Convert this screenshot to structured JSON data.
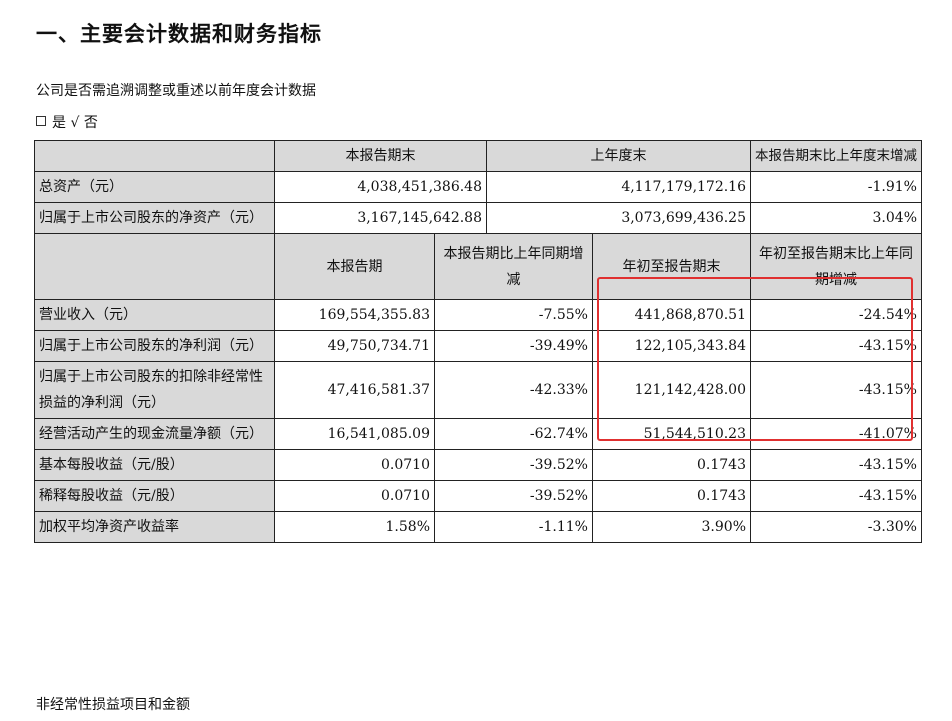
{
  "heading": "一、主要会计数据和财务指标",
  "restate_question": "公司是否需追溯调整或重述以前年度会计数据",
  "restate_answer": {
    "yes": "是",
    "check": "√",
    "no": "否"
  },
  "table1": {
    "headers": [
      "本报告期末",
      "上年度末",
      "本报告期末比上年度末增减"
    ],
    "rows": [
      {
        "label": "总资产（元）",
        "values": [
          "4,038,451,386.48",
          "4,117,179,172.16",
          "-1.91%"
        ]
      },
      {
        "label": "归属于上市公司股东的净资产（元）",
        "values": [
          "3,167,145,642.88",
          "3,073,699,436.25",
          "3.04%"
        ]
      }
    ]
  },
  "table2": {
    "headers": [
      "本报告期",
      "本报告期比上年同期增减",
      "年初至报告期末",
      "年初至报告期末比上年同期增减"
    ],
    "rows": [
      {
        "label": "营业收入（元）",
        "values": [
          "169,554,355.83",
          "-7.55%",
          "441,868,870.51",
          "-24.54%"
        ]
      },
      {
        "label": "归属于上市公司股东的净利润（元）",
        "values": [
          "49,750,734.71",
          "-39.49%",
          "122,105,343.84",
          "-43.15%"
        ]
      },
      {
        "label": "归属于上市公司股东的扣除非经常性损益的净利润（元）",
        "values": [
          "47,416,581.37",
          "-42.33%",
          "121,142,428.00",
          "-43.15%"
        ]
      },
      {
        "label": "经营活动产生的现金流量净额（元）",
        "values": [
          "16,541,085.09",
          "-62.74%",
          "51,544,510.23",
          "-41.07%"
        ]
      },
      {
        "label": "基本每股收益（元/股）",
        "values": [
          "0.0710",
          "-39.52%",
          "0.1743",
          "-43.15%"
        ]
      },
      {
        "label": "稀释每股收益（元/股）",
        "values": [
          "0.0710",
          "-39.52%",
          "0.1743",
          "-43.15%"
        ]
      },
      {
        "label": "加权平均净资产收益率",
        "values": [
          "1.58%",
          "-1.11%",
          "3.90%",
          "-3.30%"
        ]
      }
    ]
  },
  "footer": "非经常性损益项目和金额",
  "highlight_color": "#e03030"
}
